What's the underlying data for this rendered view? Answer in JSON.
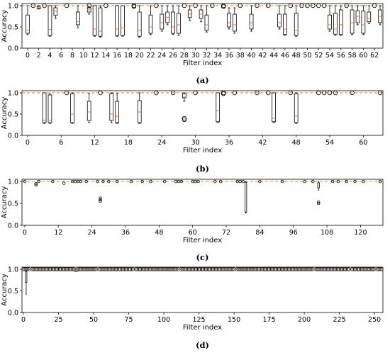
{
  "chart_data": [
    {
      "type": "box",
      "label": "(a)",
      "xlabel": "Filter index",
      "ylabel": "Accuracy",
      "xlim": [
        -1,
        63.5
      ],
      "ylim": [
        0,
        1.05
      ],
      "xticks": [
        0,
        2,
        4,
        6,
        8,
        10,
        12,
        14,
        16,
        18,
        20,
        22,
        24,
        26,
        28,
        30,
        32,
        34,
        36,
        38,
        40,
        42,
        44,
        46,
        48,
        50,
        52,
        54,
        56,
        58,
        60,
        62
      ],
      "yticks": [
        0.0,
        0.5,
        1.0
      ],
      "reference_line": 1.0,
      "boxes": [
        {
          "x": 0,
          "q1": 0.35,
          "median": 0.42,
          "q3": 0.78,
          "wlo": 0.32,
          "whi": 1.0
        },
        {
          "x": 2,
          "q1": 0.93,
          "median": 0.95,
          "q3": 0.98,
          "wlo": 0.92,
          "whi": 1.0
        },
        {
          "x": 4,
          "q1": 0.3,
          "median": 0.44,
          "q3": 1.0,
          "wlo": 0.28,
          "whi": 1.0
        },
        {
          "x": 5,
          "q1": 0.77,
          "median": 0.87,
          "q3": 0.95,
          "wlo": 0.7,
          "whi": 1.0
        },
        {
          "x": 9,
          "q1": 0.55,
          "median": 0.62,
          "q3": 0.85,
          "wlo": 0.48,
          "whi": 1.0
        },
        {
          "x": 11,
          "q1": 0.85,
          "median": 0.9,
          "q3": 0.95,
          "wlo": 0.8,
          "whi": 0.98
        },
        {
          "x": 12,
          "q1": 0.3,
          "median": 0.45,
          "q3": 1.0,
          "wlo": 0.28,
          "whi": 1.0
        },
        {
          "x": 13,
          "q1": 0.28,
          "median": 0.4,
          "q3": 0.95,
          "wlo": 0.26,
          "whi": 1.0
        },
        {
          "x": 16,
          "q1": 0.3,
          "median": 0.45,
          "q3": 1.0,
          "wlo": 0.28,
          "whi": 1.0
        },
        {
          "x": 17,
          "q1": 0.3,
          "median": 0.48,
          "q3": 1.0,
          "wlo": 0.28,
          "whi": 1.0
        },
        {
          "x": 20,
          "q1": 0.28,
          "median": 0.42,
          "q3": 0.85,
          "wlo": 0.26,
          "whi": 1.0
        },
        {
          "x": 22,
          "q1": 0.35,
          "median": 0.5,
          "q3": 0.78,
          "wlo": 0.32,
          "whi": 1.0
        },
        {
          "x": 24,
          "q1": 0.45,
          "median": 0.6,
          "q3": 0.8,
          "wlo": 0.4,
          "whi": 1.0
        },
        {
          "x": 25,
          "q1": 0.6,
          "median": 0.72,
          "q3": 0.85,
          "wlo": 0.55,
          "whi": 1.0
        },
        {
          "x": 26,
          "q1": 0.35,
          "median": 0.5,
          "q3": 0.85,
          "wlo": 0.32,
          "whi": 1.0
        },
        {
          "x": 27,
          "q1": 0.35,
          "median": 0.55,
          "q3": 0.82,
          "wlo": 0.3,
          "whi": 1.0
        },
        {
          "x": 29,
          "q1": 0.72,
          "median": 0.8,
          "q3": 0.9,
          "wlo": 0.65,
          "whi": 1.0
        },
        {
          "x": 31,
          "q1": 0.7,
          "median": 0.8,
          "q3": 0.9,
          "wlo": 0.62,
          "whi": 1.0
        },
        {
          "x": 32,
          "q1": 0.42,
          "median": 0.55,
          "q3": 0.78,
          "wlo": 0.38,
          "whi": 1.0
        },
        {
          "x": 36,
          "q1": 0.5,
          "median": 0.6,
          "q3": 0.82,
          "wlo": 0.45,
          "whi": 0.95
        },
        {
          "x": 37,
          "q1": 0.4,
          "median": 0.55,
          "q3": 0.8,
          "wlo": 0.35,
          "whi": 0.95
        },
        {
          "x": 40,
          "q1": 0.45,
          "median": 0.6,
          "q3": 0.8,
          "wlo": 0.4,
          "whi": 1.0
        },
        {
          "x": 45,
          "q1": 0.5,
          "median": 0.6,
          "q3": 0.8,
          "wlo": 0.45,
          "whi": 1.0
        },
        {
          "x": 46,
          "q1": 0.32,
          "median": 0.45,
          "q3": 0.8,
          "wlo": 0.3,
          "whi": 1.0
        },
        {
          "x": 48,
          "q1": 0.3,
          "median": 0.42,
          "q3": 0.82,
          "wlo": 0.28,
          "whi": 1.0
        },
        {
          "x": 54,
          "q1": 0.45,
          "median": 0.55,
          "q3": 0.78,
          "wlo": 0.4,
          "whi": 1.0
        },
        {
          "x": 55,
          "q1": 0.33,
          "median": 0.45,
          "q3": 0.82,
          "wlo": 0.3,
          "whi": 1.0
        },
        {
          "x": 56,
          "q1": 0.32,
          "median": 0.55,
          "q3": 0.9,
          "wlo": 0.3,
          "whi": 1.0
        },
        {
          "x": 58,
          "q1": 0.35,
          "median": 0.6,
          "q3": 0.9,
          "wlo": 0.32,
          "whi": 1.0
        },
        {
          "x": 59,
          "q1": 0.6,
          "median": 0.75,
          "q3": 0.88,
          "wlo": 0.55,
          "whi": 1.0
        },
        {
          "x": 60,
          "q1": 0.35,
          "median": 0.55,
          "q3": 0.88,
          "wlo": 0.32,
          "whi": 1.0
        },
        {
          "x": 61,
          "q1": 0.62,
          "median": 0.7,
          "q3": 0.85,
          "wlo": 0.58,
          "whi": 1.0
        },
        {
          "x": 63,
          "q1": 0.6,
          "median": 0.75,
          "q3": 0.9,
          "wlo": 0.55,
          "whi": 1.0
        }
      ],
      "points": [
        {
          "x": 1,
          "y": 1.0
        },
        {
          "x": 3,
          "y": 1.0
        },
        {
          "x": 7,
          "y": 1.0
        },
        {
          "x": 11,
          "y": 1.0
        },
        {
          "x": 14,
          "y": 1.0
        },
        {
          "x": 19,
          "y": 0.98
        },
        {
          "x": 19,
          "y": 1.0
        },
        {
          "x": 23,
          "y": 1.0
        },
        {
          "x": 28,
          "y": 1.0
        },
        {
          "x": 30,
          "y": 1.0
        },
        {
          "x": 33,
          "y": 1.0
        },
        {
          "x": 35,
          "y": 1.0
        },
        {
          "x": 35,
          "y": 0.98
        },
        {
          "x": 38,
          "y": 1.0
        },
        {
          "x": 41,
          "y": 1.0
        },
        {
          "x": 43,
          "y": 1.0
        },
        {
          "x": 47,
          "y": 1.0
        },
        {
          "x": 49,
          "y": 1.0
        },
        {
          "x": 50,
          "y": 1.0
        },
        {
          "x": 51,
          "y": 1.0
        },
        {
          "x": 52,
          "y": 1.0
        },
        {
          "x": 53,
          "y": 1.0
        },
        {
          "x": 57,
          "y": 1.0
        },
        {
          "x": 62,
          "y": 1.0
        }
      ]
    },
    {
      "type": "box",
      "label": "(b)",
      "xlabel": "Filter index",
      "ylabel": "Accuracy",
      "xlim": [
        -1,
        63.5
      ],
      "ylim": [
        0,
        1.05
      ],
      "xticks": [
        0,
        6,
        12,
        18,
        24,
        30,
        36,
        42,
        48,
        54,
        60
      ],
      "yticks": [
        0.0,
        0.5,
        1.0
      ],
      "reference_line": 1.0,
      "boxes": [
        {
          "x": 3,
          "q1": 0.3,
          "median": 0.35,
          "q3": 1.0,
          "wlo": 0.28,
          "whi": 1.0
        },
        {
          "x": 4,
          "q1": 0.3,
          "median": 0.35,
          "q3": 0.95,
          "wlo": 0.28,
          "whi": 0.98
        },
        {
          "x": 8,
          "q1": 0.3,
          "median": 0.5,
          "q3": 0.98,
          "wlo": 0.28,
          "whi": 1.0
        },
        {
          "x": 11,
          "q1": 0.35,
          "median": 0.55,
          "q3": 0.8,
          "wlo": 0.3,
          "whi": 0.98
        },
        {
          "x": 15,
          "q1": 0.35,
          "median": 0.5,
          "q3": 0.98,
          "wlo": 0.3,
          "whi": 1.0
        },
        {
          "x": 16,
          "q1": 0.3,
          "median": 0.45,
          "q3": 0.8,
          "wlo": 0.28,
          "whi": 0.98
        },
        {
          "x": 20,
          "q1": 0.3,
          "median": 0.55,
          "q3": 0.82,
          "wlo": 0.28,
          "whi": 1.0
        },
        {
          "x": 28,
          "q1": 0.88,
          "median": 0.9,
          "q3": 0.98,
          "wlo": 0.8,
          "whi": 1.0
        },
        {
          "x": 34,
          "q1": 0.32,
          "median": 0.58,
          "q3": 1.0,
          "wlo": 0.3,
          "whi": 1.0
        },
        {
          "x": 44,
          "q1": 0.32,
          "median": 0.4,
          "q3": 1.0,
          "wlo": 0.3,
          "whi": 1.0
        },
        {
          "x": 48,
          "q1": 0.3,
          "median": 0.45,
          "q3": 0.98,
          "wlo": 0.28,
          "whi": 1.0
        }
      ],
      "points": [
        {
          "x": 7,
          "y": 1.0
        },
        {
          "x": 13,
          "y": 1.0
        },
        {
          "x": 23,
          "y": 1.0
        },
        {
          "x": 26,
          "y": 1.0
        },
        {
          "x": 28,
          "y": 0.4
        },
        {
          "x": 28,
          "y": 0.37
        },
        {
          "x": 30,
          "y": 1.0
        },
        {
          "x": 35,
          "y": 1.0
        },
        {
          "x": 35,
          "y": 0.98
        },
        {
          "x": 37,
          "y": 1.0
        },
        {
          "x": 41,
          "y": 1.0
        },
        {
          "x": 43,
          "y": 1.0
        },
        {
          "x": 47,
          "y": 1.0
        },
        {
          "x": 52,
          "y": 1.0
        },
        {
          "x": 53,
          "y": 1.0
        },
        {
          "x": 54,
          "y": 1.0
        },
        {
          "x": 55,
          "y": 1.0
        },
        {
          "x": 58,
          "y": 1.0
        },
        {
          "x": 63,
          "y": 1.0
        }
      ]
    },
    {
      "type": "box",
      "label": "(c)",
      "xlabel": "Filter index",
      "ylabel": "Accuracy",
      "xlim": [
        -1,
        128
      ],
      "ylim": [
        0,
        1.05
      ],
      "xticks": [
        0,
        12,
        24,
        36,
        48,
        60,
        72,
        84,
        96,
        108,
        120
      ],
      "yticks": [
        0.0,
        0.5,
        1.0
      ],
      "reference_line": 1.0,
      "boxes": [
        {
          "x": 79,
          "q1": 0.3,
          "median": 0.32,
          "q3": 0.98,
          "wlo": 0.28,
          "whi": 1.0
        },
        {
          "x": 105,
          "q1": 0.85,
          "median": 0.88,
          "q3": 0.97,
          "wlo": 0.8,
          "whi": 1.0
        }
      ],
      "points": [
        {
          "x": 0,
          "y": 1.0
        },
        {
          "x": 4,
          "y": 0.95
        },
        {
          "x": 4,
          "y": 0.92
        },
        {
          "x": 5,
          "y": 1.0
        },
        {
          "x": 10,
          "y": 1.0
        },
        {
          "x": 14,
          "y": 0.96
        },
        {
          "x": 17,
          "y": 1.0
        },
        {
          "x": 18,
          "y": 1.0
        },
        {
          "x": 19,
          "y": 1.0
        },
        {
          "x": 20,
          "y": 1.0
        },
        {
          "x": 22,
          "y": 1.0
        },
        {
          "x": 26,
          "y": 1.0
        },
        {
          "x": 27,
          "y": 0.62
        },
        {
          "x": 27,
          "y": 0.58
        },
        {
          "x": 27,
          "y": 0.55
        },
        {
          "x": 28,
          "y": 1.0
        },
        {
          "x": 30,
          "y": 1.0
        },
        {
          "x": 33,
          "y": 1.0
        },
        {
          "x": 38,
          "y": 1.0
        },
        {
          "x": 42,
          "y": 1.0
        },
        {
          "x": 45,
          "y": 1.0
        },
        {
          "x": 50,
          "y": 1.0
        },
        {
          "x": 54,
          "y": 1.0
        },
        {
          "x": 55,
          "y": 1.0
        },
        {
          "x": 56,
          "y": 1.0
        },
        {
          "x": 60,
          "y": 1.0
        },
        {
          "x": 61,
          "y": 1.0
        },
        {
          "x": 62,
          "y": 1.0
        },
        {
          "x": 68,
          "y": 1.0
        },
        {
          "x": 70,
          "y": 1.0
        },
        {
          "x": 76,
          "y": 1.0
        },
        {
          "x": 77,
          "y": 1.0
        },
        {
          "x": 78,
          "y": 1.0
        },
        {
          "x": 84,
          "y": 1.0
        },
        {
          "x": 92,
          "y": 1.0
        },
        {
          "x": 100,
          "y": 1.0
        },
        {
          "x": 103,
          "y": 1.0
        },
        {
          "x": 105,
          "y": 0.53
        },
        {
          "x": 105,
          "y": 0.5
        },
        {
          "x": 110,
          "y": 1.0
        },
        {
          "x": 112,
          "y": 1.0
        },
        {
          "x": 115,
          "y": 1.0
        },
        {
          "x": 118,
          "y": 1.0
        },
        {
          "x": 121,
          "y": 1.0
        },
        {
          "x": 127,
          "y": 1.0
        }
      ]
    },
    {
      "type": "box",
      "label": "(d)",
      "xlabel": "Filter index",
      "ylabel": "Accuracy",
      "xlim": [
        -1,
        256
      ],
      "ylim": [
        0,
        1.05
      ],
      "xticks": [
        0,
        25,
        50,
        75,
        100,
        125,
        150,
        175,
        200,
        225,
        250
      ],
      "yticks": [
        0.0,
        0.5,
        1.0
      ],
      "reference_line": 1.0,
      "boxes": [
        {
          "x": 2,
          "q1": 0.7,
          "median": 0.85,
          "q3": 0.95,
          "wlo": 0.42,
          "whi": 1.0
        }
      ],
      "outlier_bands": [
        {
          "from": 0,
          "to": 4,
          "y": 1.0
        },
        {
          "from": 6,
          "to": 36,
          "y": 1.0
        },
        {
          "from": 37,
          "to": 38,
          "y": 0.98
        },
        {
          "from": 39,
          "to": 52,
          "y": 1.0
        },
        {
          "from": 54,
          "to": 78,
          "y": 1.0
        },
        {
          "from": 80,
          "to": 110,
          "y": 1.0
        },
        {
          "from": 112,
          "to": 150,
          "y": 1.0
        },
        {
          "from": 152,
          "to": 206,
          "y": 1.0
        },
        {
          "from": 208,
          "to": 232,
          "y": 1.0
        },
        {
          "from": 234,
          "to": 250,
          "y": 1.0
        },
        {
          "from": 252,
          "to": 255,
          "y": 1.0
        }
      ]
    }
  ]
}
